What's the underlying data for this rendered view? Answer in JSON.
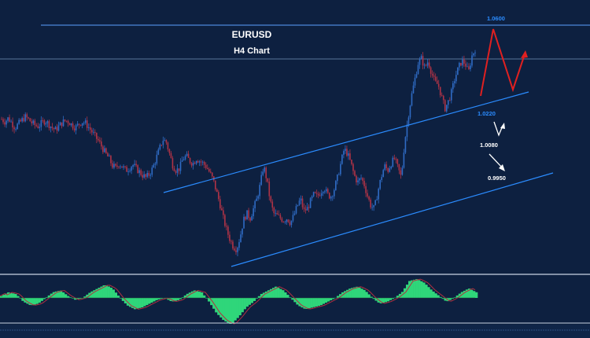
{
  "chart_data": {
    "type": "candlestick",
    "symbol": "EURUSD",
    "timeframe": "H4 Chart",
    "price_labels": [
      {
        "text": "1.0600",
        "price": 1.06,
        "color": "#2b8cff"
      },
      {
        "text": "1.0220",
        "price": 1.022,
        "color": "#2b8cff"
      },
      {
        "text": "1.0080",
        "price": 1.008,
        "color": "#ffffff"
      },
      {
        "text": "0.9950",
        "price": 0.995,
        "color": "#ffffff"
      }
    ],
    "close_path": [
      1.0205,
      1.0195,
      1.021,
      1.019,
      1.017,
      1.0185,
      1.02,
      1.0215,
      1.0205,
      1.019,
      1.018,
      1.0175,
      1.019,
      1.02,
      1.0185,
      1.017,
      1.016,
      1.0175,
      1.019,
      1.02,
      1.0195,
      1.018,
      1.017,
      1.0185,
      1.0195,
      1.0188,
      1.017,
      1.015,
      1.013,
      1.011,
      1.0085,
      1.006,
      1.004,
      1.001,
      1.0,
      1.002,
      1.0005,
      0.999,
      1.0,
      1.0015,
      1.0,
      0.9985,
      0.997,
      0.996,
      0.9975,
      1.0,
      1.004,
      1.008,
      1.012,
      1.011,
      1.006,
      1.001,
      0.999,
      1.0,
      1.004,
      1.005,
      1.003,
      1.002,
      1.004,
      1.003,
      1.002,
      1.0005,
      0.998,
      0.995,
      0.99,
      0.985,
      0.979,
      0.974,
      0.97,
      0.967,
      0.966,
      0.971,
      0.978,
      0.981,
      0.979,
      0.983,
      0.987,
      0.993,
      1.001,
      0.995,
      0.986,
      0.981,
      0.98,
      0.979,
      0.978,
      0.979,
      0.977,
      0.98,
      0.984,
      0.987,
      0.982,
      0.983,
      0.986,
      0.989,
      0.988,
      0.99,
      0.992,
      0.989,
      0.988,
      0.991,
      0.996,
      1.002,
      1.008,
      1.006,
      1.002,
      0.997,
      0.994,
      0.996,
      0.993,
      0.988,
      0.984,
      0.983,
      0.99,
      0.996,
      1.001,
      0.999,
      1.002,
      1.004,
      1.0,
      0.996,
      1.011,
      1.021,
      1.03,
      1.037,
      1.044,
      1.046,
      1.042,
      1.045,
      1.04,
      1.036,
      1.035,
      1.03,
      1.025,
      1.028,
      1.032,
      1.038,
      1.042,
      1.045,
      1.044,
      1.04,
      1.047,
      1.05
    ],
    "trendlines": [
      {
        "name": "upper-channel",
        "from": [
          0,
          0.9908
        ],
        "to": [
          2,
          1.032
        ]
      },
      {
        "name": "lower-channel",
        "from": [
          0,
          0.9652
        ],
        "to": [
          2,
          1.0085
        ]
      }
    ],
    "forecast_projection": [
      1.035,
      1.062,
      1.044,
      1.054
    ],
    "downside_arrows": [
      {
        "from": 1.015,
        "to": 1.009
      },
      {
        "from": 1.002,
        "to": 0.9955
      }
    ],
    "oscillator": {
      "type": "histogram",
      "values": [
        0.1,
        0.3,
        0.2,
        -0.2,
        -0.4,
        -0.3,
        0.0,
        0.3,
        0.4,
        0.1,
        -0.1,
        0.0,
        0.3,
        0.5,
        0.7,
        0.5,
        0.0,
        -0.4,
        -0.6,
        -0.5,
        -0.3,
        -0.1,
        0.0,
        -0.2,
        -0.1,
        0.2,
        0.4,
        0.3,
        -0.2,
        -0.8,
        -1.2,
        -1.4,
        -1.0,
        -0.5,
        -0.2,
        0.2,
        0.4,
        0.6,
        0.4,
        0.0,
        -0.4,
        -0.6,
        -0.5,
        -0.4,
        -0.2,
        0.0,
        0.3,
        0.5,
        0.6,
        0.4,
        0.0,
        -0.3,
        -0.2,
        0.0,
        0.3,
        0.9,
        1.0,
        0.8,
        0.4,
        0.1,
        -0.2,
        0.0,
        0.3,
        0.5,
        0.3
      ],
      "positive_color": "#2fd67a",
      "signal_color": "#b03040"
    },
    "colors": {
      "background": "#0d2040",
      "bull_candle": "#2f6bc4",
      "bear_candle": "#b03346",
      "channel_line": "#2b8cff",
      "forecast_line": "#e02020",
      "text": "#ffffff"
    }
  }
}
